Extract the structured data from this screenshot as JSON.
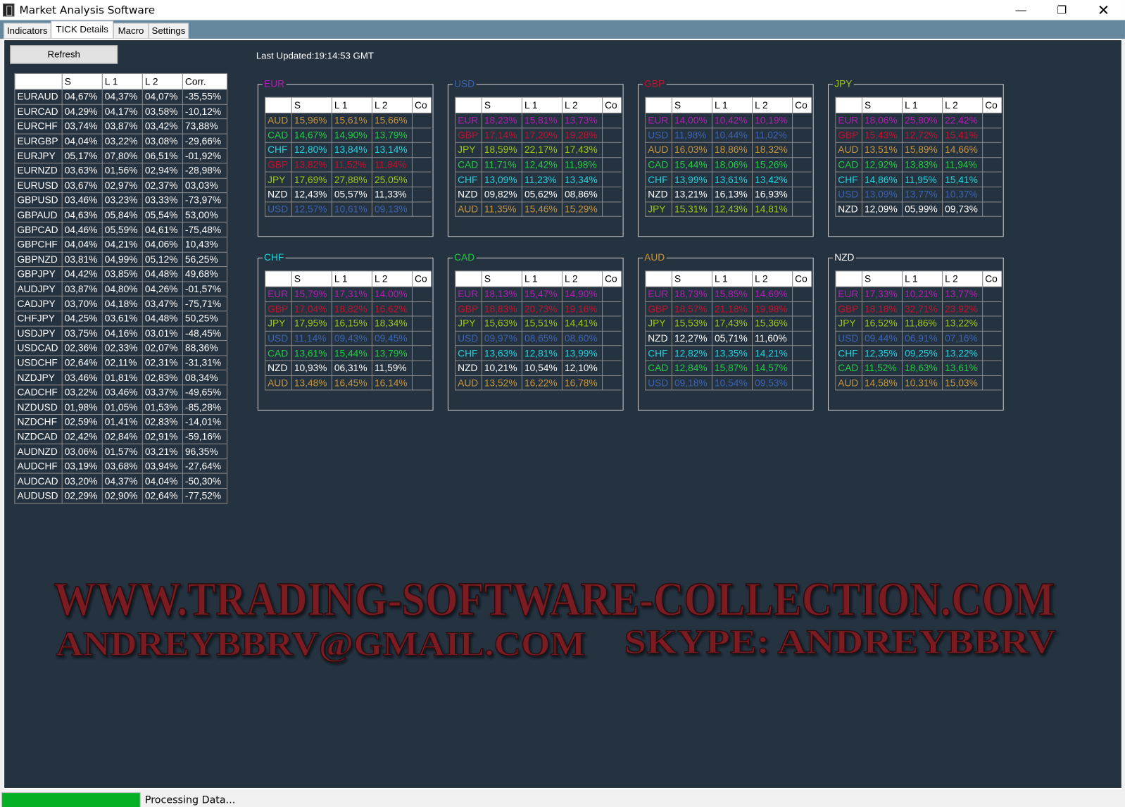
{
  "window": {
    "title": "Market Analysis Software",
    "minimize_icon": "minimize-icon",
    "maximize_icon": "restore-icon",
    "close_icon": "close-icon"
  },
  "tabs": [
    {
      "label": "Indicators",
      "active": false
    },
    {
      "label": "TICK Details",
      "active": true
    },
    {
      "label": "Macro",
      "active": false
    },
    {
      "label": "Settings",
      "active": false
    }
  ],
  "toolbar": {
    "refresh_label": "Refresh",
    "last_updated": "Last Updated:19:14:53 GMT"
  },
  "colors": {
    "background": "#25323f",
    "EUR": "#b41eb4",
    "USD": "#3c64b4",
    "GBP": "#c8102e",
    "JPY": "#a0c814",
    "CHF": "#22d4e0",
    "CAD": "#22cc44",
    "AUD": "#c8963c",
    "NZD": "#ffffff",
    "progress": "#06b025"
  },
  "pairs_table": {
    "headers": [
      "",
      "S",
      "L 1",
      "L 2",
      "Corr."
    ],
    "rows": [
      [
        "EURAUD",
        "04,67%",
        "04,37%",
        "04,07%",
        "-35,55%"
      ],
      [
        "EURCAD",
        "04,29%",
        "04,17%",
        "03,58%",
        "-10,12%"
      ],
      [
        "EURCHF",
        "03,74%",
        "03,87%",
        "03,42%",
        "73,88%"
      ],
      [
        "EURGBP",
        "04,04%",
        "03,22%",
        "03,08%",
        "-29,66%"
      ],
      [
        "EURJPY",
        "05,17%",
        "07,80%",
        "06,51%",
        "-01,92%"
      ],
      [
        "EURNZD",
        "03,63%",
        "01,56%",
        "02,94%",
        "-28,98%"
      ],
      [
        "EURUSD",
        "03,67%",
        "02,97%",
        "02,37%",
        "03,03%"
      ],
      [
        "GBPUSD",
        "03,46%",
        "03,23%",
        "03,33%",
        "-73,97%"
      ],
      [
        "GBPAUD",
        "04,63%",
        "05,84%",
        "05,54%",
        "53,00%"
      ],
      [
        "GBPCAD",
        "04,46%",
        "05,59%",
        "04,61%",
        "-75,48%"
      ],
      [
        "GBPCHF",
        "04,04%",
        "04,21%",
        "04,06%",
        "10,43%"
      ],
      [
        "GBPNZD",
        "03,81%",
        "04,99%",
        "05,12%",
        "56,25%"
      ],
      [
        "GBPJPY",
        "04,42%",
        "03,85%",
        "04,48%",
        "49,68%"
      ],
      [
        "AUDJPY",
        "03,87%",
        "04,80%",
        "04,26%",
        "-01,57%"
      ],
      [
        "CADJPY",
        "03,70%",
        "04,18%",
        "03,47%",
        "-75,71%"
      ],
      [
        "CHFJPY",
        "04,25%",
        "03,61%",
        "04,48%",
        "50,25%"
      ],
      [
        "USDJPY",
        "03,75%",
        "04,16%",
        "03,01%",
        "-48,45%"
      ],
      [
        "USDCAD",
        "02,36%",
        "02,33%",
        "02,07%",
        "88,36%"
      ],
      [
        "USDCHF",
        "02,64%",
        "02,11%",
        "02,31%",
        "-31,31%"
      ],
      [
        "NZDJPY",
        "03,46%",
        "01,81%",
        "02,83%",
        "08,34%"
      ],
      [
        "CADCHF",
        "03,22%",
        "03,46%",
        "03,37%",
        "-49,65%"
      ],
      [
        "NZDUSD",
        "01,98%",
        "01,05%",
        "01,53%",
        "-85,28%"
      ],
      [
        "NZDCHF",
        "02,59%",
        "01,41%",
        "02,83%",
        "-14,01%"
      ],
      [
        "NZDCAD",
        "02,42%",
        "02,84%",
        "02,91%",
        "-59,16%"
      ],
      [
        "AUDNZD",
        "03,06%",
        "01,57%",
        "03,21%",
        "96,35%"
      ],
      [
        "AUDCHF",
        "03,19%",
        "03,68%",
        "03,94%",
        "-27,64%"
      ],
      [
        "AUDCAD",
        "03,20%",
        "04,37%",
        "04,04%",
        "-50,30%"
      ],
      [
        "AUDUSD",
        "02,29%",
        "02,90%",
        "02,64%",
        "-77,52%"
      ]
    ]
  },
  "currency_headers": [
    "",
    "S",
    "L 1",
    "L 2",
    "Co"
  ],
  "currency_panels": [
    {
      "currency": "EUR",
      "rows": [
        [
          "AUD",
          "15,96%",
          "15,61%",
          "15,66%"
        ],
        [
          "CAD",
          "14,67%",
          "14,90%",
          "13,79%"
        ],
        [
          "CHF",
          "12,80%",
          "13,84%",
          "13,14%"
        ],
        [
          "GBP",
          "13,82%",
          "11,52%",
          "11,84%"
        ],
        [
          "JPY",
          "17,69%",
          "27,88%",
          "25,05%"
        ],
        [
          "NZD",
          "12,43%",
          "05,57%",
          "11,33%"
        ],
        [
          "USD",
          "12,57%",
          "10,61%",
          "09,13%"
        ]
      ]
    },
    {
      "currency": "USD",
      "rows": [
        [
          "EUR",
          "18,23%",
          "15,81%",
          "13,73%"
        ],
        [
          "GBP",
          "17,14%",
          "17,20%",
          "19,28%"
        ],
        [
          "JPY",
          "18,59%",
          "22,17%",
          "17,43%"
        ],
        [
          "CAD",
          "11,71%",
          "12,42%",
          "11,98%"
        ],
        [
          "CHF",
          "13,09%",
          "11,23%",
          "13,34%"
        ],
        [
          "NZD",
          "09,82%",
          "05,62%",
          "08,86%"
        ],
        [
          "AUD",
          "11,35%",
          "15,46%",
          "15,29%"
        ]
      ]
    },
    {
      "currency": "GBP",
      "rows": [
        [
          "EUR",
          "14,00%",
          "10,42%",
          "10,19%"
        ],
        [
          "USD",
          "11,98%",
          "10,44%",
          "11,02%"
        ],
        [
          "AUD",
          "16,03%",
          "18,86%",
          "18,32%"
        ],
        [
          "CAD",
          "15,44%",
          "18,06%",
          "15,26%"
        ],
        [
          "CHF",
          "13,99%",
          "13,61%",
          "13,42%"
        ],
        [
          "NZD",
          "13,21%",
          "16,13%",
          "16,93%"
        ],
        [
          "JPY",
          "15,31%",
          "12,43%",
          "14,81%"
        ]
      ]
    },
    {
      "currency": "JPY",
      "rows": [
        [
          "EUR",
          "18,06%",
          "25,80%",
          "22,42%"
        ],
        [
          "GBP",
          "15,43%",
          "12,72%",
          "15,41%"
        ],
        [
          "AUD",
          "13,51%",
          "15,89%",
          "14,66%"
        ],
        [
          "CAD",
          "12,92%",
          "13,83%",
          "11,94%"
        ],
        [
          "CHF",
          "14,86%",
          "11,95%",
          "15,41%"
        ],
        [
          "USD",
          "13,09%",
          "13,77%",
          "10,37%"
        ],
        [
          "NZD",
          "12,09%",
          "05,99%",
          "09,73%"
        ]
      ]
    },
    {
      "currency": "CHF",
      "rows": [
        [
          "EUR",
          "15,79%",
          "17,31%",
          "14,00%"
        ],
        [
          "GBP",
          "17,04%",
          "18,82%",
          "16,62%"
        ],
        [
          "JPY",
          "17,95%",
          "16,15%",
          "18,34%"
        ],
        [
          "USD",
          "11,14%",
          "09,43%",
          "09,45%"
        ],
        [
          "CAD",
          "13,61%",
          "15,44%",
          "13,79%"
        ],
        [
          "NZD",
          "10,93%",
          "06,31%",
          "11,59%"
        ],
        [
          "AUD",
          "13,48%",
          "16,45%",
          "16,14%"
        ]
      ]
    },
    {
      "currency": "CAD",
      "rows": [
        [
          "EUR",
          "18,13%",
          "15,47%",
          "14,90%"
        ],
        [
          "GBP",
          "18,83%",
          "20,73%",
          "19,16%"
        ],
        [
          "JPY",
          "15,63%",
          "15,51%",
          "14,41%"
        ],
        [
          "USD",
          "09,97%",
          "08,65%",
          "08,60%"
        ],
        [
          "CHF",
          "13,63%",
          "12,81%",
          "13,99%"
        ],
        [
          "NZD",
          "10,21%",
          "10,54%",
          "12,10%"
        ],
        [
          "AUD",
          "13,52%",
          "16,22%",
          "16,78%"
        ]
      ]
    },
    {
      "currency": "AUD",
      "rows": [
        [
          "EUR",
          "18,73%",
          "15,85%",
          "14,69%"
        ],
        [
          "GBP",
          "18,57%",
          "21,18%",
          "19,98%"
        ],
        [
          "JPY",
          "15,53%",
          "17,43%",
          "15,36%"
        ],
        [
          "NZD",
          "12,27%",
          "05,71%",
          "11,60%"
        ],
        [
          "CHF",
          "12,82%",
          "13,35%",
          "14,21%"
        ],
        [
          "CAD",
          "12,84%",
          "15,87%",
          "14,57%"
        ],
        [
          "USD",
          "09,18%",
          "10,54%",
          "09,53%"
        ]
      ]
    },
    {
      "currency": "NZD",
      "rows": [
        [
          "EUR",
          "17,33%",
          "10,21%",
          "13,77%"
        ],
        [
          "GBP",
          "18,18%",
          "32,71%",
          "23,92%"
        ],
        [
          "JPY",
          "16,52%",
          "11,86%",
          "13,22%"
        ],
        [
          "USD",
          "09,44%",
          "06,91%",
          "07,16%"
        ],
        [
          "CHF",
          "12,35%",
          "09,25%",
          "13,22%"
        ],
        [
          "CAD",
          "11,52%",
          "18,63%",
          "13,61%"
        ],
        [
          "AUD",
          "14,58%",
          "10,31%",
          "15,03%"
        ]
      ]
    }
  ],
  "watermark": {
    "line1": "WWW.TRADING-SOFTWARE-COLLECTION.COM",
    "email": "ANDREYBBRV@GMAIL.COM",
    "skype": "SKYPE: ANDREYBBRV"
  },
  "status": {
    "text": "Processing Data...",
    "progress_percent": 100
  }
}
